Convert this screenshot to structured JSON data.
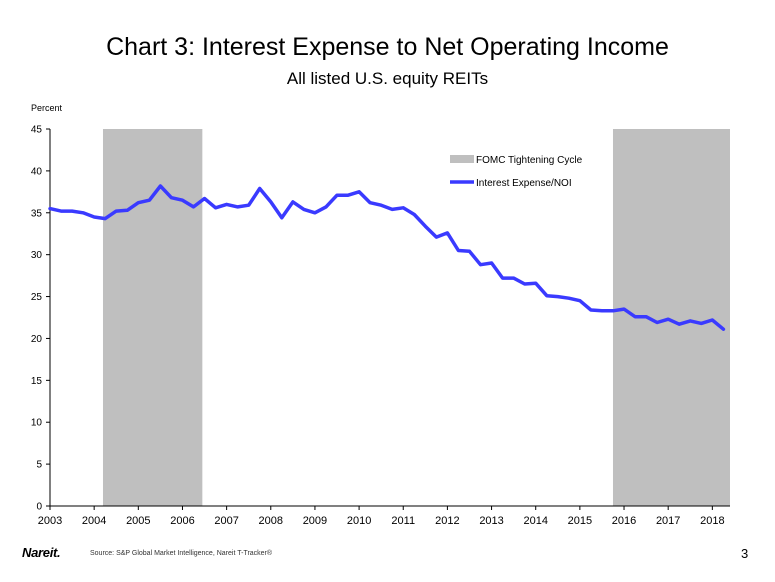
{
  "chart_data": {
    "type": "line",
    "title": "Chart 3: Interest Expense to Net Operating Income",
    "subtitle": "All listed U.S. equity REITs",
    "ylabel": "Percent",
    "xlabel": "",
    "xlim": [
      2003,
      2018.4
    ],
    "ylim": [
      0,
      45
    ],
    "x_ticks": [
      "2003",
      "2004",
      "2005",
      "2006",
      "2007",
      "2008",
      "2009",
      "2010",
      "2011",
      "2012",
      "2013",
      "2014",
      "2015",
      "2016",
      "2017",
      "2018"
    ],
    "y_ticks": [
      "0",
      "5",
      "10",
      "15",
      "20",
      "25",
      "30",
      "35",
      "40",
      "45"
    ],
    "grid": false,
    "legend": {
      "position": "top-right",
      "entries": [
        "FOMC Tightening Cycle",
        "Interest Expense/NOI"
      ]
    },
    "shaded_regions": [
      {
        "name": "FOMC Tightening Cycle",
        "x_start": 2004.2,
        "x_end": 2006.45,
        "color": "#bfbfbf"
      },
      {
        "name": "FOMC Tightening Cycle",
        "x_start": 2015.75,
        "x_end": 2018.4,
        "color": "#bfbfbf"
      }
    ],
    "series": [
      {
        "name": "Interest Expense/NOI",
        "color": "#3a3aff",
        "x": [
          2003.0,
          2003.25,
          2003.5,
          2003.75,
          2004.0,
          2004.25,
          2004.5,
          2004.75,
          2005.0,
          2005.25,
          2005.5,
          2005.75,
          2006.0,
          2006.25,
          2006.5,
          2006.75,
          2007.0,
          2007.25,
          2007.5,
          2007.75,
          2008.0,
          2008.25,
          2008.5,
          2008.75,
          2009.0,
          2009.25,
          2009.5,
          2009.75,
          2010.0,
          2010.25,
          2010.5,
          2010.75,
          2011.0,
          2011.25,
          2011.5,
          2011.75,
          2012.0,
          2012.25,
          2012.5,
          2012.75,
          2013.0,
          2013.25,
          2013.5,
          2013.75,
          2014.0,
          2014.25,
          2014.5,
          2014.75,
          2015.0,
          2015.25,
          2015.5,
          2015.75,
          2016.0,
          2016.25,
          2016.5,
          2016.75,
          2017.0,
          2017.25,
          2017.5,
          2017.75,
          2018.0,
          2018.25
        ],
        "values": [
          35.5,
          35.2,
          35.2,
          35.0,
          34.5,
          34.3,
          35.2,
          35.3,
          36.2,
          36.5,
          38.2,
          36.8,
          36.5,
          35.7,
          36.7,
          35.6,
          36.0,
          35.7,
          35.9,
          37.9,
          36.3,
          34.4,
          36.3,
          35.4,
          35.0,
          35.7,
          37.1,
          37.1,
          37.5,
          36.2,
          35.9,
          35.4,
          35.6,
          34.8,
          33.4,
          32.1,
          32.6,
          30.5,
          30.4,
          28.8,
          29.0,
          27.2,
          27.2,
          26.5,
          26.6,
          25.1,
          25.0,
          24.8,
          24.5,
          23.4,
          23.3,
          23.3,
          23.5,
          22.6,
          22.6,
          21.9,
          22.3,
          21.7,
          22.1,
          21.8,
          22.2,
          21.1
        ]
      }
    ]
  },
  "footer": {
    "logo": "Nareit.",
    "source": "Source: S&P Global Market Intelligence, Nareit T-Tracker®",
    "page_number": "3"
  }
}
